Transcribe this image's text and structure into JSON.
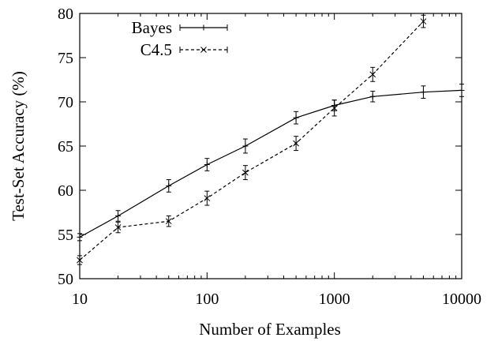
{
  "chart_data": {
    "type": "line",
    "title": "",
    "xlabel": "Number of Examples",
    "ylabel": "Test-Set Accuracy (%)",
    "xscale": "log",
    "xlim": [
      10,
      10000
    ],
    "ylim": [
      50,
      80
    ],
    "xticks": [
      10,
      100,
      1000,
      10000
    ],
    "xtick_labels": [
      "10",
      "100",
      "1000",
      "10000"
    ],
    "yticks": [
      50,
      55,
      60,
      65,
      70,
      75,
      80
    ],
    "ytick_labels": [
      "50",
      "55",
      "60",
      "65",
      "70",
      "75",
      "80"
    ],
    "grid": false,
    "legend_position": "top-left",
    "series": [
      {
        "name": "Bayes",
        "line_style": "solid",
        "marker": "plus",
        "x": [
          10,
          20,
          50,
          100,
          200,
          500,
          1000,
          2000,
          5000,
          10000
        ],
        "y": [
          54.7,
          57.1,
          60.5,
          62.9,
          65.0,
          68.2,
          69.6,
          70.6,
          71.1,
          71.3
        ],
        "err": [
          0.4,
          0.6,
          0.7,
          0.7,
          0.8,
          0.7,
          0.6,
          0.6,
          0.7,
          0.7
        ]
      },
      {
        "name": "C4.5",
        "line_style": "dashed",
        "marker": "cross",
        "x": [
          10,
          20,
          50,
          100,
          200,
          500,
          1000,
          2000,
          5000
        ],
        "y": [
          52.1,
          55.8,
          56.5,
          59.1,
          62.0,
          65.3,
          69.3,
          73.1,
          79.1
        ],
        "err": [
          0.5,
          0.6,
          0.6,
          0.8,
          0.8,
          0.8,
          0.9,
          0.8,
          0.7
        ]
      }
    ]
  }
}
